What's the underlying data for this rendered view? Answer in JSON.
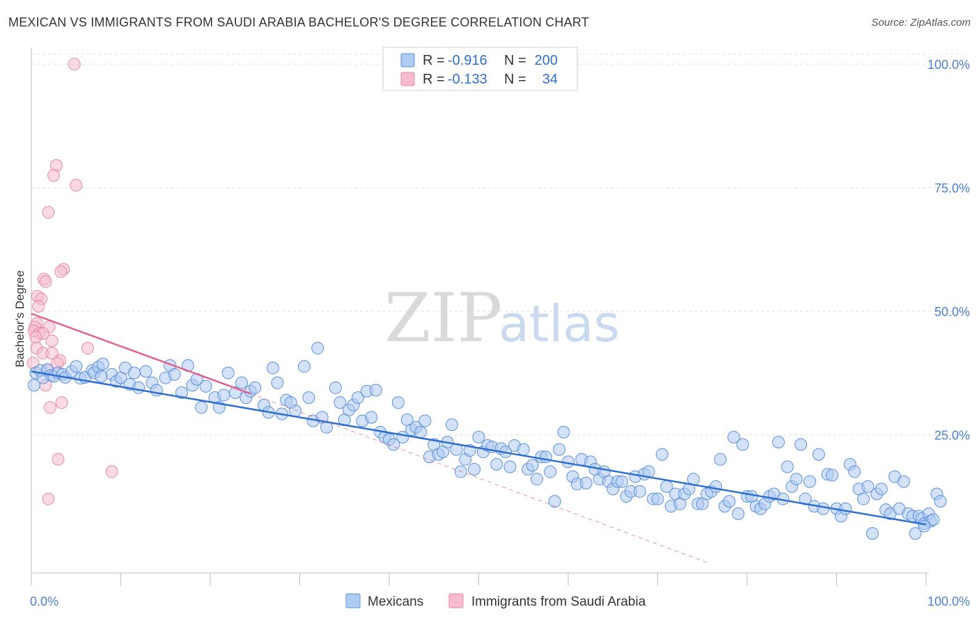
{
  "title": "MEXICAN VS IMMIGRANTS FROM SAUDI ARABIA BACHELOR'S DEGREE CORRELATION CHART",
  "source": "Source: ZipAtlas.com",
  "watermark": {
    "zip": "ZIP",
    "atlas": "atlas"
  },
  "colors": {
    "blue_fill": "#aecbf2",
    "blue_stroke": "#5b90dc",
    "blue_line": "#2f6fd0",
    "pink_fill": "#f6bccd",
    "pink_stroke": "#e889a6",
    "pink_line": "#e0628a",
    "grid": "#dddddd",
    "tick_text": "#4a7fd4"
  },
  "legend": {
    "rows": [
      {
        "r_label": "R =",
        "r_value": "-0.916",
        "n_label": "N =",
        "n_value": "200"
      },
      {
        "r_label": "R =",
        "r_value": "-0.133",
        "n_label": "N =",
        "n_value": "34"
      }
    ]
  },
  "bottom_legend": [
    "Mexicans",
    "Immigrants from Saudi Arabia"
  ],
  "chart_data": {
    "type": "scatter",
    "xlabel": "",
    "ylabel": "Bachelor's Degree",
    "xlim": [
      0,
      100
    ],
    "ylim": [
      -3,
      102
    ],
    "x_tick_labels": [
      "0.0%",
      "100.0%"
    ],
    "y_ticks": [
      25,
      50,
      75,
      100
    ],
    "y_tick_labels": [
      "25.0%",
      "50.0%",
      "75.0%",
      "100.0%"
    ],
    "grid": true,
    "legend_position": "top-center",
    "series": [
      {
        "name": "Mexicans",
        "r": -0.916,
        "n": 200,
        "trend": {
          "x": [
            0,
            100
          ],
          "y": [
            37.8,
            6.8
          ]
        },
        "points": [
          [
            0.3,
            35
          ],
          [
            0.5,
            37.5
          ],
          [
            1,
            38
          ],
          [
            1.3,
            36.5
          ],
          [
            1.8,
            38.2
          ],
          [
            2.2,
            37
          ],
          [
            2.5,
            36.8
          ],
          [
            3,
            37.5
          ],
          [
            3.5,
            37.2
          ],
          [
            3.8,
            36.6
          ],
          [
            4.5,
            37.8
          ],
          [
            5,
            38.8
          ],
          [
            5.5,
            36.4
          ],
          [
            6,
            36.6
          ],
          [
            6.8,
            38
          ],
          [
            7,
            37.5
          ],
          [
            7.5,
            38.7
          ],
          [
            7.8,
            36.8
          ],
          [
            8,
            39.3
          ],
          [
            9,
            37.2
          ],
          [
            9.5,
            35.8
          ],
          [
            10,
            36.5
          ],
          [
            10.5,
            38.5
          ],
          [
            11,
            35.2
          ],
          [
            11.5,
            37.5
          ],
          [
            12,
            34.5
          ],
          [
            12.8,
            37.8
          ],
          [
            13.5,
            35.5
          ],
          [
            14,
            34
          ],
          [
            15,
            36.5
          ],
          [
            15.5,
            39
          ],
          [
            16,
            37.2
          ],
          [
            16.8,
            33.5
          ],
          [
            17.5,
            39
          ],
          [
            18,
            35
          ],
          [
            18.5,
            36.2
          ],
          [
            19,
            30.5
          ],
          [
            19.5,
            34.8
          ],
          [
            20.5,
            32.5
          ],
          [
            21,
            30.5
          ],
          [
            21.5,
            33
          ],
          [
            22,
            37.5
          ],
          [
            22.8,
            33.5
          ],
          [
            23.5,
            35.5
          ],
          [
            24,
            32.5
          ],
          [
            24.5,
            33.8
          ],
          [
            25,
            34.5
          ],
          [
            26,
            31
          ],
          [
            26.5,
            29.5
          ],
          [
            27,
            38.5
          ],
          [
            27.5,
            35.5
          ],
          [
            28,
            29.2
          ],
          [
            28.5,
            32
          ],
          [
            29,
            31.5
          ],
          [
            29.5,
            29.8
          ],
          [
            30.5,
            38.8
          ],
          [
            31,
            32.5
          ],
          [
            31.5,
            27.8
          ],
          [
            32,
            42.5
          ],
          [
            32.5,
            28.5
          ],
          [
            33,
            26.5
          ],
          [
            34,
            34.5
          ],
          [
            34.5,
            31.5
          ],
          [
            35,
            28
          ],
          [
            35.5,
            30
          ],
          [
            36,
            31
          ],
          [
            36.5,
            32.5
          ],
          [
            37,
            27.8
          ],
          [
            37.5,
            33.8
          ],
          [
            38,
            28.5
          ],
          [
            38.5,
            34
          ],
          [
            39,
            25.5
          ],
          [
            39.5,
            24.5
          ],
          [
            40,
            24
          ],
          [
            40.5,
            23
          ],
          [
            41,
            31.5
          ],
          [
            41.5,
            24.5
          ],
          [
            42,
            28
          ],
          [
            42.5,
            26
          ],
          [
            43,
            26.5
          ],
          [
            43.5,
            25.5
          ],
          [
            44,
            27.8
          ],
          [
            44.5,
            20.5
          ],
          [
            45,
            23
          ],
          [
            45.5,
            21
          ],
          [
            46,
            21.5
          ],
          [
            46.5,
            23.5
          ],
          [
            47,
            27
          ],
          [
            47.5,
            22
          ],
          [
            48,
            17.5
          ],
          [
            48.5,
            20
          ],
          [
            49,
            21.8
          ],
          [
            49.5,
            18
          ],
          [
            50,
            24.5
          ],
          [
            50.5,
            21.5
          ],
          [
            51,
            22.8
          ],
          [
            51.5,
            22.5
          ],
          [
            52,
            19
          ],
          [
            52.5,
            22.2
          ],
          [
            53,
            21.5
          ],
          [
            53.5,
            18.5
          ],
          [
            54,
            22.8
          ],
          [
            55,
            22
          ],
          [
            55.5,
            18
          ],
          [
            56,
            18.8
          ],
          [
            56.5,
            16
          ],
          [
            57,
            20.5
          ],
          [
            57.5,
            20.5
          ],
          [
            58,
            17.5
          ],
          [
            58.5,
            11.5
          ],
          [
            59,
            22
          ],
          [
            59.5,
            25.5
          ],
          [
            60,
            19.5
          ],
          [
            60.5,
            16.5
          ],
          [
            61,
            15
          ],
          [
            61.5,
            20
          ],
          [
            62,
            15.2
          ],
          [
            62.5,
            19.5
          ],
          [
            63,
            18
          ],
          [
            63.5,
            16
          ],
          [
            64,
            17.5
          ],
          [
            64.5,
            15.5
          ],
          [
            65,
            14
          ],
          [
            65.5,
            15.5
          ],
          [
            66,
            15.5
          ],
          [
            66.5,
            12.5
          ],
          [
            67,
            13.5
          ],
          [
            67.5,
            16.5
          ],
          [
            68,
            13.5
          ],
          [
            68.5,
            17
          ],
          [
            69,
            17.5
          ],
          [
            69.5,
            12
          ],
          [
            70,
            12
          ],
          [
            70.5,
            21
          ],
          [
            71,
            14.5
          ],
          [
            71.5,
            10.5
          ],
          [
            72,
            13
          ],
          [
            72.5,
            11
          ],
          [
            73,
            13
          ],
          [
            73.5,
            14
          ],
          [
            74,
            16
          ],
          [
            74.5,
            11
          ],
          [
            75,
            11
          ],
          [
            75.5,
            13
          ],
          [
            76,
            13.5
          ],
          [
            76.5,
            14.5
          ],
          [
            77,
            20
          ],
          [
            77.5,
            10.5
          ],
          [
            78,
            11.5
          ],
          [
            78.5,
            24.5
          ],
          [
            79,
            9
          ],
          [
            79.5,
            23
          ],
          [
            80,
            12.5
          ],
          [
            80.5,
            12.5
          ],
          [
            81,
            10.5
          ],
          [
            81.5,
            10
          ],
          [
            82,
            11
          ],
          [
            82.5,
            12.5
          ],
          [
            83,
            13
          ],
          [
            83.5,
            23.5
          ],
          [
            84,
            12
          ],
          [
            84.5,
            18.5
          ],
          [
            85,
            14.5
          ],
          [
            85.5,
            16
          ],
          [
            86,
            23
          ],
          [
            86.5,
            12
          ],
          [
            87,
            15.5
          ],
          [
            87.5,
            10.5
          ],
          [
            88,
            21
          ],
          [
            88.5,
            10
          ],
          [
            89,
            17
          ],
          [
            89.5,
            16.8
          ],
          [
            90,
            10
          ],
          [
            90.5,
            8.5
          ],
          [
            91,
            10
          ],
          [
            91.5,
            19
          ],
          [
            92,
            17.5
          ],
          [
            92.5,
            14
          ],
          [
            93,
            12
          ],
          [
            93.5,
            14.5
          ],
          [
            94,
            5
          ],
          [
            94.5,
            13
          ],
          [
            95,
            14
          ],
          [
            95.5,
            9.8
          ],
          [
            96,
            9
          ],
          [
            96.5,
            16.5
          ],
          [
            97,
            10
          ],
          [
            97.5,
            15.5
          ],
          [
            98,
            9
          ],
          [
            98.5,
            8.5
          ],
          [
            98.8,
            5
          ],
          [
            99.2,
            8.5
          ],
          [
            99.5,
            8
          ],
          [
            99.8,
            7
          ],
          [
            100.3,
            9
          ],
          [
            100.5,
            7.5
          ],
          [
            100.8,
            7.8
          ],
          [
            101.2,
            13
          ],
          [
            101.6,
            11.5
          ],
          [
            99.8,
            6.5
          ]
        ]
      },
      {
        "name": "Immigrants from Saudi Arabia",
        "r": -0.133,
        "n": 34,
        "trend": {
          "x": [
            0,
            24.5
          ],
          "y": [
            49.5,
            33.3
          ]
        },
        "trend_extension": {
          "x": [
            24.5,
            75.7
          ],
          "y": [
            33.3,
            -1
          ]
        },
        "points": [
          [
            4.8,
            100
          ],
          [
            2.8,
            79.5
          ],
          [
            2.5,
            77.5
          ],
          [
            5,
            75.5
          ],
          [
            1.9,
            70
          ],
          [
            3.6,
            58.5
          ],
          [
            3.3,
            58
          ],
          [
            1.4,
            56.5
          ],
          [
            1.6,
            56
          ],
          [
            0.7,
            53
          ],
          [
            1.1,
            52.5
          ],
          [
            0.8,
            51
          ],
          [
            0.6,
            47.5
          ],
          [
            0.4,
            46.8
          ],
          [
            2,
            46.8
          ],
          [
            0.3,
            46
          ],
          [
            0.9,
            45.5
          ],
          [
            1.3,
            45.5
          ],
          [
            0.5,
            44.8
          ],
          [
            2.3,
            44
          ],
          [
            0.6,
            42.5
          ],
          [
            6.3,
            42.5
          ],
          [
            1.3,
            41.5
          ],
          [
            2.3,
            41.5
          ],
          [
            3.2,
            40
          ],
          [
            2.9,
            39.5
          ],
          [
            0.2,
            39.5
          ],
          [
            1.8,
            38
          ],
          [
            1.6,
            35
          ],
          [
            3.4,
            31.5
          ],
          [
            2.1,
            30.5
          ],
          [
            3,
            20
          ],
          [
            9,
            17.5
          ],
          [
            1.9,
            12
          ]
        ]
      }
    ]
  }
}
